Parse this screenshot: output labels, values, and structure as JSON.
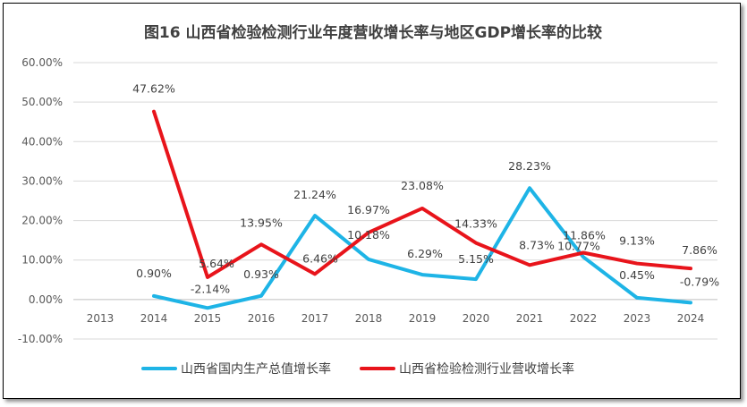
{
  "chart_data": {
    "type": "line",
    "title": "图16  山西省检验检测行业年度营收增长率与地区GDP增长率的比较",
    "categories": [
      "2013",
      "2014",
      "2015",
      "2016",
      "2017",
      "2018",
      "2019",
      "2020",
      "2021",
      "2022",
      "2023",
      "2024"
    ],
    "y_ticks": [
      "-10.00%",
      "0.00%",
      "10.00%",
      "20.00%",
      "30.00%",
      "40.00%",
      "50.00%",
      "60.00%"
    ],
    "ylim": [
      -10,
      60
    ],
    "grid": true,
    "legend_position": "bottom",
    "series": [
      {
        "name": "山西省国内生产总值增长率",
        "color": "#1EB4E6",
        "values": [
          null,
          0.9,
          -2.14,
          0.93,
          21.24,
          10.18,
          6.29,
          5.15,
          28.23,
          10.77,
          0.45,
          -0.79
        ],
        "labels": [
          null,
          "0.90%",
          "-2.14%",
          "0.93%",
          "21.24%",
          "10.18%",
          "6.29%",
          "5.15%",
          "28.23%",
          "10.77%",
          "0.45%",
          "-0.79%"
        ]
      },
      {
        "name": "山西省检验检测行业营收增长率",
        "color": "#E8141B",
        "values": [
          null,
          47.62,
          5.64,
          13.95,
          6.46,
          16.97,
          23.08,
          14.33,
          8.73,
          11.86,
          9.13,
          7.86
        ],
        "labels": [
          null,
          "47.62%",
          "5.64%",
          "13.95%",
          "6.46%",
          "16.97%",
          "23.08%",
          "14.33%",
          "8.73%",
          "11.86%",
          "9.13%",
          "7.86%"
        ]
      }
    ]
  }
}
